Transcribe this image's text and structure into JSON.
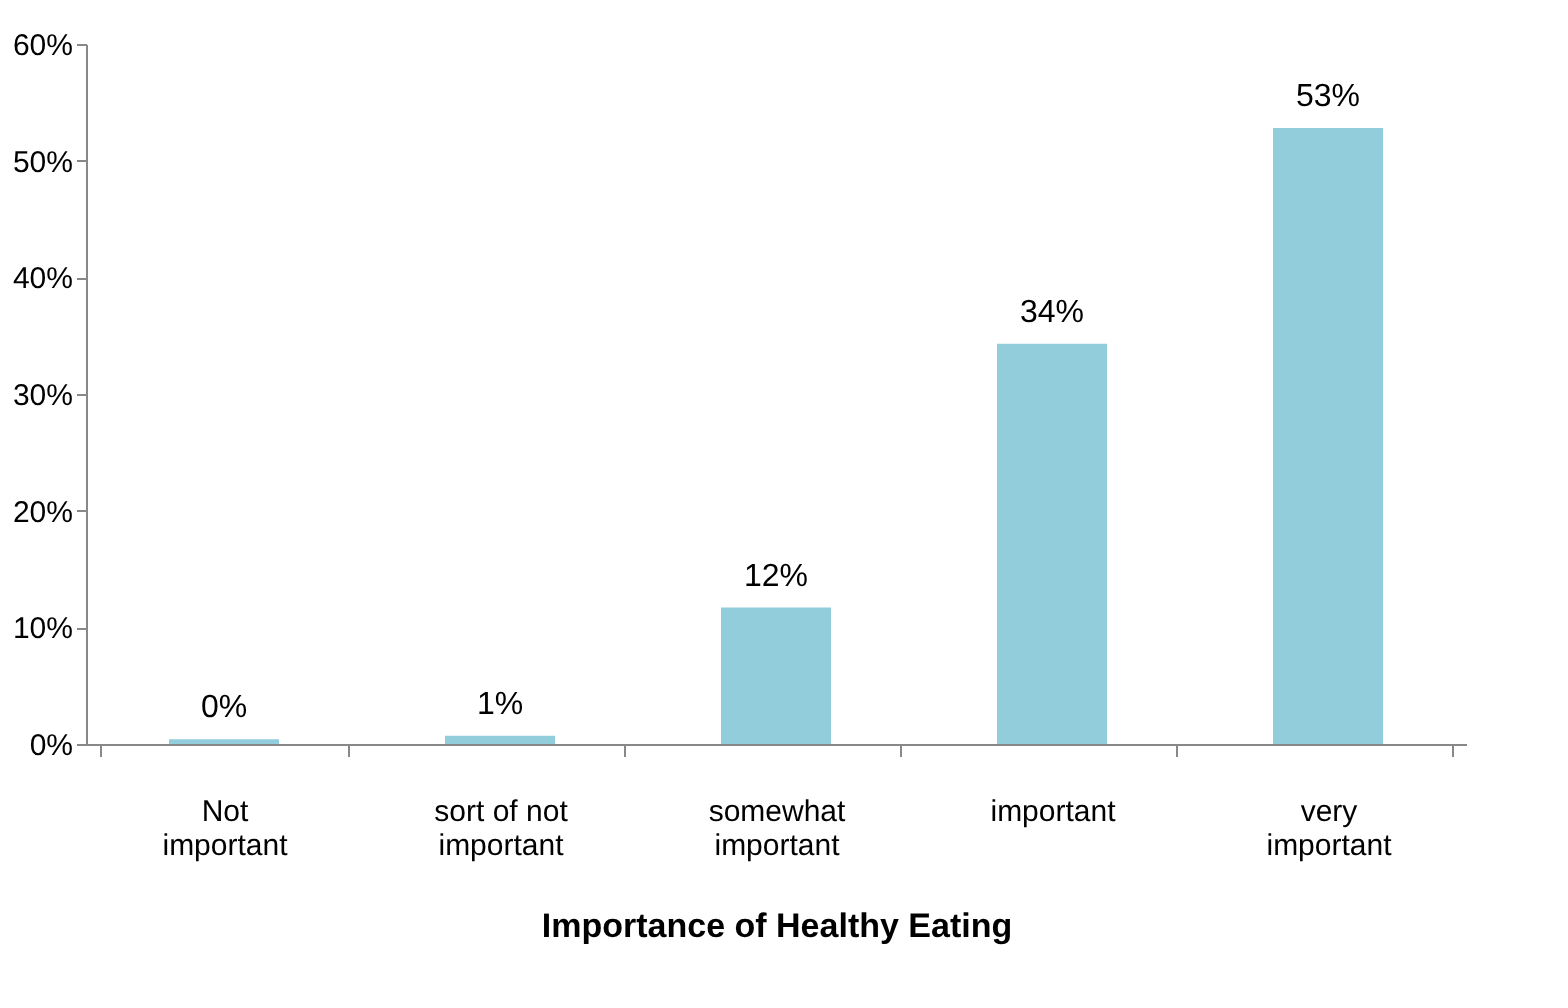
{
  "chart_data": {
    "type": "bar",
    "xlabel": "Importance of Healthy Eating",
    "categories": [
      "Not important",
      "sort of not important",
      "somewhat important",
      "important",
      "very important"
    ],
    "values": [
      0.4,
      0.7,
      11.7,
      34.3,
      52.8
    ],
    "value_labels": [
      "0%",
      "1%",
      "12%",
      "34%",
      "53%"
    ],
    "color": "#92cddc",
    "ylim": [
      0,
      60
    ],
    "yticks": [
      {
        "value": 0,
        "label": "0%"
      },
      {
        "value": 10,
        "label": "10%"
      },
      {
        "value": 20,
        "label": "20%"
      },
      {
        "value": 30,
        "label": "30%"
      },
      {
        "value": 40,
        "label": "40%"
      },
      {
        "value": 50,
        "label": "50%"
      },
      {
        "value": 60,
        "label": "60%"
      }
    ],
    "grid": false
  }
}
